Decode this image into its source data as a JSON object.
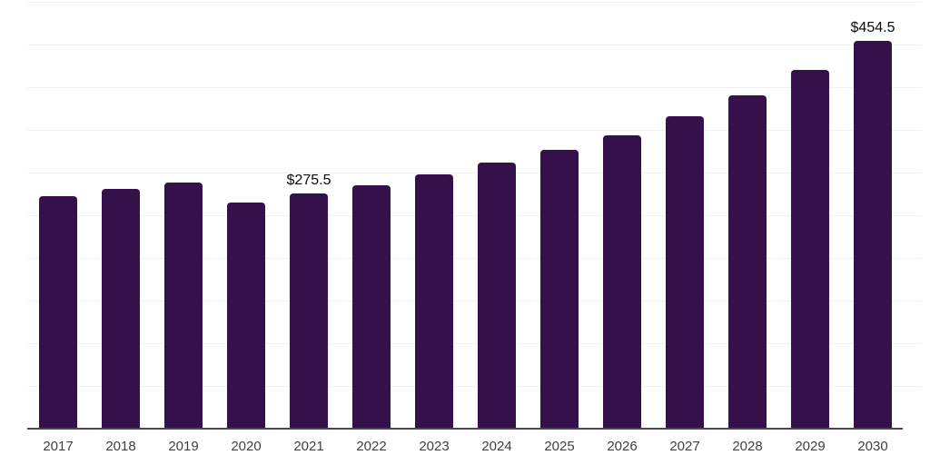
{
  "chart_data": {
    "type": "bar",
    "title": "",
    "xlabel": "",
    "ylabel": "",
    "categories": [
      "2017",
      "2018",
      "2019",
      "2020",
      "2021",
      "2022",
      "2023",
      "2024",
      "2025",
      "2026",
      "2027",
      "2028",
      "2029",
      "2030"
    ],
    "values": [
      272.0,
      280.5,
      288.5,
      265.0,
      275.5,
      285.5,
      298.0,
      311.5,
      327.0,
      344.0,
      366.0,
      391.0,
      420.5,
      454.5
    ],
    "data_labels": [
      {
        "category": "2021",
        "text": "$275.5"
      },
      {
        "category": "2030",
        "text": "$454.5"
      }
    ],
    "ylim": [
      0,
      500
    ],
    "gridline_step": 50,
    "grid": "horizontal-only",
    "legend": "none",
    "y_axis_tick_labels": "none",
    "colors": {
      "bar": "#35114B",
      "axis_line": "#4a4a4a",
      "gridline": "#f2f2f2",
      "tick_label": "#3f3f3f",
      "value_label": "#0b0b0b",
      "background": "#ffffff"
    }
  }
}
